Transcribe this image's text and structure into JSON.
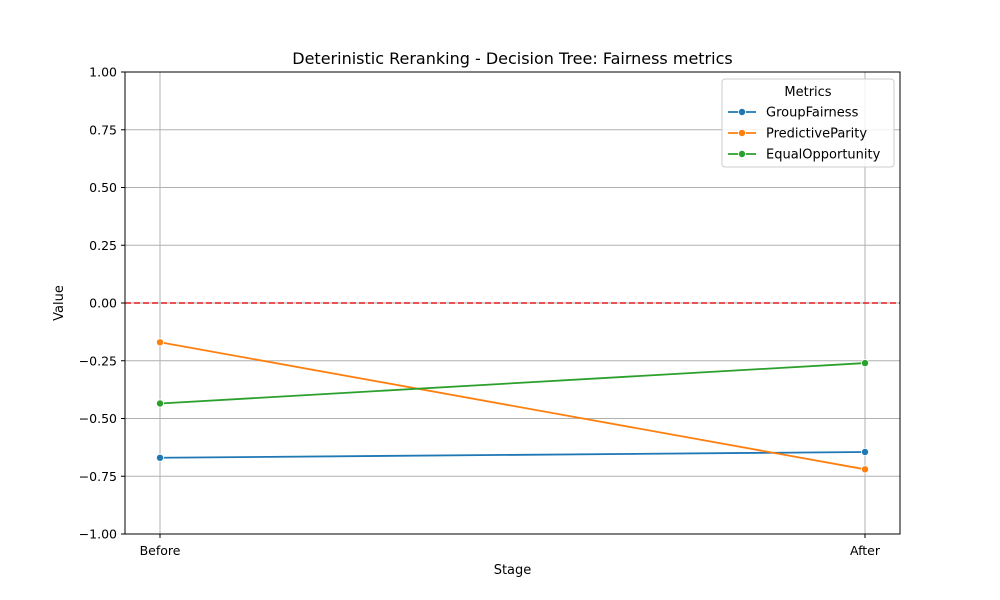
{
  "chart_data": {
    "type": "line",
    "title": "Deterinistic Reranking - Decision Tree: Fairness metrics",
    "xlabel": "Stage",
    "ylabel": "Value",
    "categories": [
      "Before",
      "After"
    ],
    "ylim": [
      -1.0,
      1.0
    ],
    "yticks": [
      "1.00",
      "0.75",
      "0.50",
      "0.25",
      "0.00",
      "−0.25",
      "−0.50",
      "−0.75",
      "−1.00"
    ],
    "ytick_values": [
      1.0,
      0.75,
      0.5,
      0.25,
      0.0,
      -0.25,
      -0.5,
      -0.75,
      -1.0
    ],
    "grid": true,
    "reference_line": {
      "y": 0.0,
      "color": "#e41a1c",
      "style": "dashed"
    },
    "legend": {
      "title": "Metrics",
      "placement": "top-right"
    },
    "series": [
      {
        "name": "GroupFairness",
        "color": "#1f77b4",
        "values": [
          -0.67,
          -0.645
        ]
      },
      {
        "name": "PredictiveParity",
        "color": "#ff7f0e",
        "values": [
          -0.17,
          -0.72
        ]
      },
      {
        "name": "EqualOpportunity",
        "color": "#2ca02c",
        "values": [
          -0.435,
          -0.26
        ]
      }
    ]
  }
}
